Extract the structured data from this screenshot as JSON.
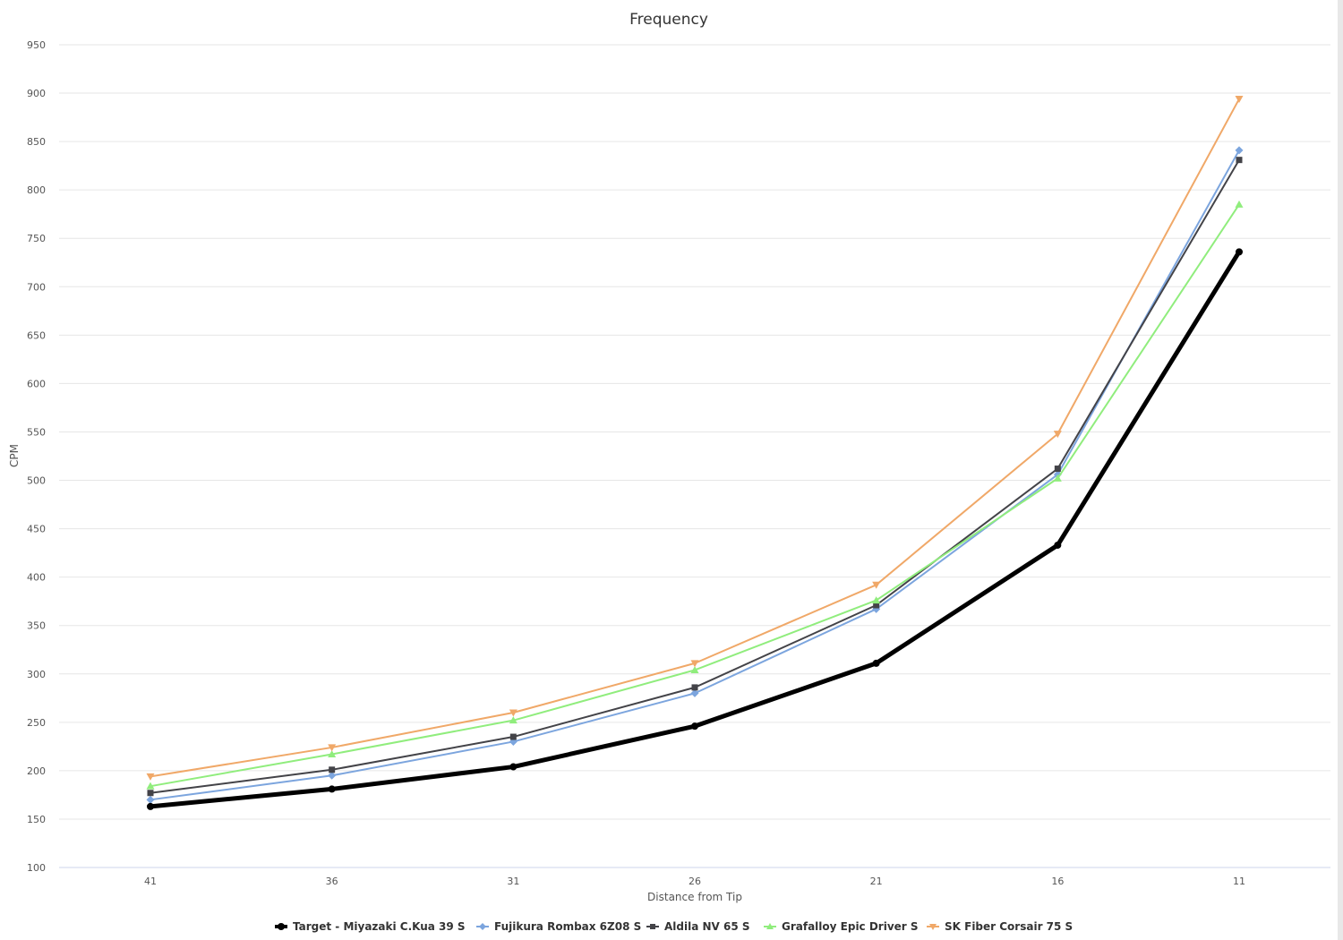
{
  "chart_data": {
    "type": "line",
    "title": "Frequency",
    "xlabel": "Distance from Tip",
    "ylabel": "CPM",
    "ylim": [
      100,
      950
    ],
    "y_ticks": [
      100,
      150,
      200,
      250,
      300,
      350,
      400,
      450,
      500,
      550,
      600,
      650,
      700,
      750,
      800,
      850,
      900,
      950
    ],
    "categories": [
      "41",
      "36",
      "31",
      "26",
      "21",
      "16",
      "11"
    ],
    "grid": true,
    "legend_position": "bottom",
    "series": [
      {
        "name": "Target - Miyazaki C.Kua 39 S",
        "color": "#000000",
        "marker": "circle",
        "values": [
          163,
          181,
          204,
          246,
          311,
          433,
          736
        ]
      },
      {
        "name": "Fujikura Rombax 6Z08 S",
        "color": "#7ca5de",
        "marker": "diamond",
        "values": [
          170,
          195,
          230,
          280,
          367,
          506,
          841
        ]
      },
      {
        "name": "Aldila NV 65 S",
        "color": "#434348",
        "marker": "square",
        "values": [
          177,
          201,
          235,
          286,
          371,
          512,
          831
        ]
      },
      {
        "name": "Grafalloy Epic Driver S",
        "color": "#90ed7d",
        "marker": "triangle",
        "values": [
          184,
          217,
          252,
          304,
          376,
          502,
          785
        ]
      },
      {
        "name": "SK Fiber Corsair 75 S",
        "color": "#f0a868",
        "marker": "triangle-down",
        "values": [
          194,
          224,
          260,
          311,
          392,
          548,
          894
        ]
      }
    ]
  }
}
